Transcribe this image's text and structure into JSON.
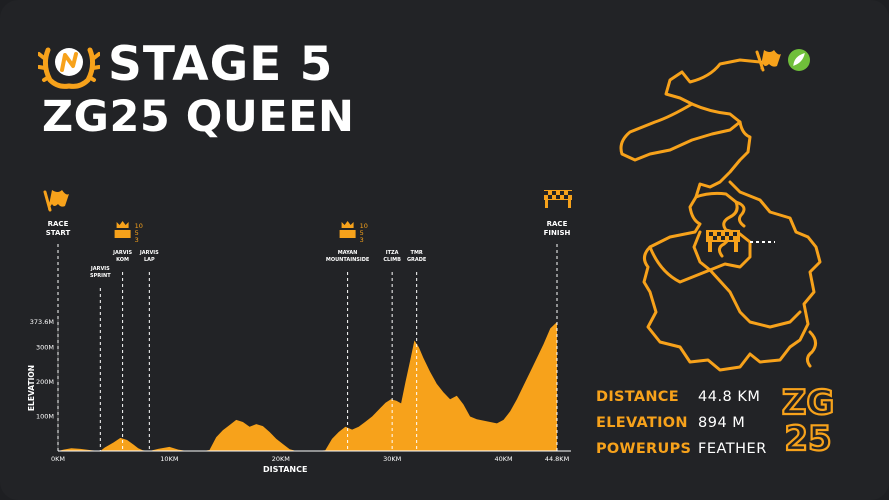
{
  "header": {
    "title_line1": "STAGE 5",
    "title_line2": "ZG25 QUEEN"
  },
  "chart_data": {
    "type": "area",
    "xlabel": "DISTANCE",
    "ylabel": "ELEVATION",
    "x_ticks": [
      "0KM",
      "10KM",
      "20KM",
      "30KM",
      "40KM",
      "44.8KM"
    ],
    "x_tick_values": [
      0,
      10,
      20,
      30,
      40,
      44.8
    ],
    "y_ticks": [
      "100M",
      "200M",
      "300M",
      "373.6M"
    ],
    "y_tick_values": [
      100,
      200,
      300,
      373.6
    ],
    "xlim": [
      0,
      44.8
    ],
    "ylim": [
      0,
      373.6
    ],
    "profile": {
      "x": [
        0,
        0.5,
        1.2,
        2.0,
        3.0,
        3.8,
        4.2,
        5.0,
        5.6,
        6.2,
        6.8,
        7.2,
        7.6,
        8.2,
        9.0,
        10.0,
        10.8,
        11.6,
        12.4,
        13.0,
        13.6,
        14.2,
        14.8,
        15.4,
        16.0,
        16.6,
        17.2,
        17.8,
        18.4,
        19.0,
        19.6,
        20.2,
        20.8,
        21.4,
        22.0,
        22.6,
        23.2,
        24.0,
        24.6,
        25.2,
        25.8,
        26.4,
        27.0,
        27.6,
        28.2,
        28.8,
        29.4,
        29.9,
        30.4,
        30.8,
        31.2,
        31.6,
        32.0,
        32.4,
        32.8,
        33.4,
        34.0,
        34.6,
        35.2,
        35.8,
        36.4,
        37.0,
        37.6,
        38.2,
        38.8,
        39.4,
        40.0,
        40.6,
        41.2,
        41.8,
        42.4,
        43.0,
        43.6,
        44.2,
        44.8
      ],
      "y": [
        0,
        4,
        8,
        6,
        2,
        0,
        10,
        25,
        38,
        32,
        18,
        8,
        2,
        0,
        6,
        12,
        4,
        0,
        0,
        0,
        3,
        40,
        60,
        75,
        90,
        84,
        70,
        78,
        72,
        55,
        35,
        20,
        5,
        0,
        0,
        0,
        0,
        2,
        35,
        55,
        70,
        62,
        70,
        85,
        100,
        120,
        140,
        150,
        145,
        138,
        200,
        260,
        320,
        300,
        270,
        230,
        195,
        170,
        150,
        160,
        135,
        100,
        92,
        88,
        84,
        80,
        90,
        115,
        150,
        190,
        230,
        270,
        310,
        355,
        373.6
      ]
    },
    "markers": [
      {
        "label": "RACE START",
        "x": 0,
        "icon": "start-flag-icon"
      },
      {
        "label": "JARVIS SPRINT",
        "x": 3.8
      },
      {
        "label": "JARVIS KOM",
        "x": 5.8,
        "points": [
          "10",
          "5",
          "3"
        ]
      },
      {
        "label": "JARVIS LAP",
        "x": 8.2
      },
      {
        "label": "MAYAN MOUNTAINSIDE",
        "x": 26.0,
        "points": [
          "10",
          "5",
          "3"
        ]
      },
      {
        "label": "ITZA CLIMB",
        "x": 30.0
      },
      {
        "label": "TMR GRADE",
        "x": 32.2
      },
      {
        "label": "RACE FINISH",
        "x": 44.8,
        "icon": "finish-flag-icon"
      }
    ],
    "fill_color": "#f7a21b",
    "grid": false
  },
  "stats": [
    {
      "label": "DISTANCE",
      "value": "44.8 KM"
    },
    {
      "label": "ELEVATION",
      "value": "894 M"
    },
    {
      "label": "POWERUPS",
      "value": "FEATHER"
    }
  ],
  "logo": {
    "zg_line1": "ZG",
    "zg_line2": "25"
  },
  "colors": {
    "accent": "#f7a21b",
    "background": "#222326",
    "powerup": "#6fbf3a"
  }
}
